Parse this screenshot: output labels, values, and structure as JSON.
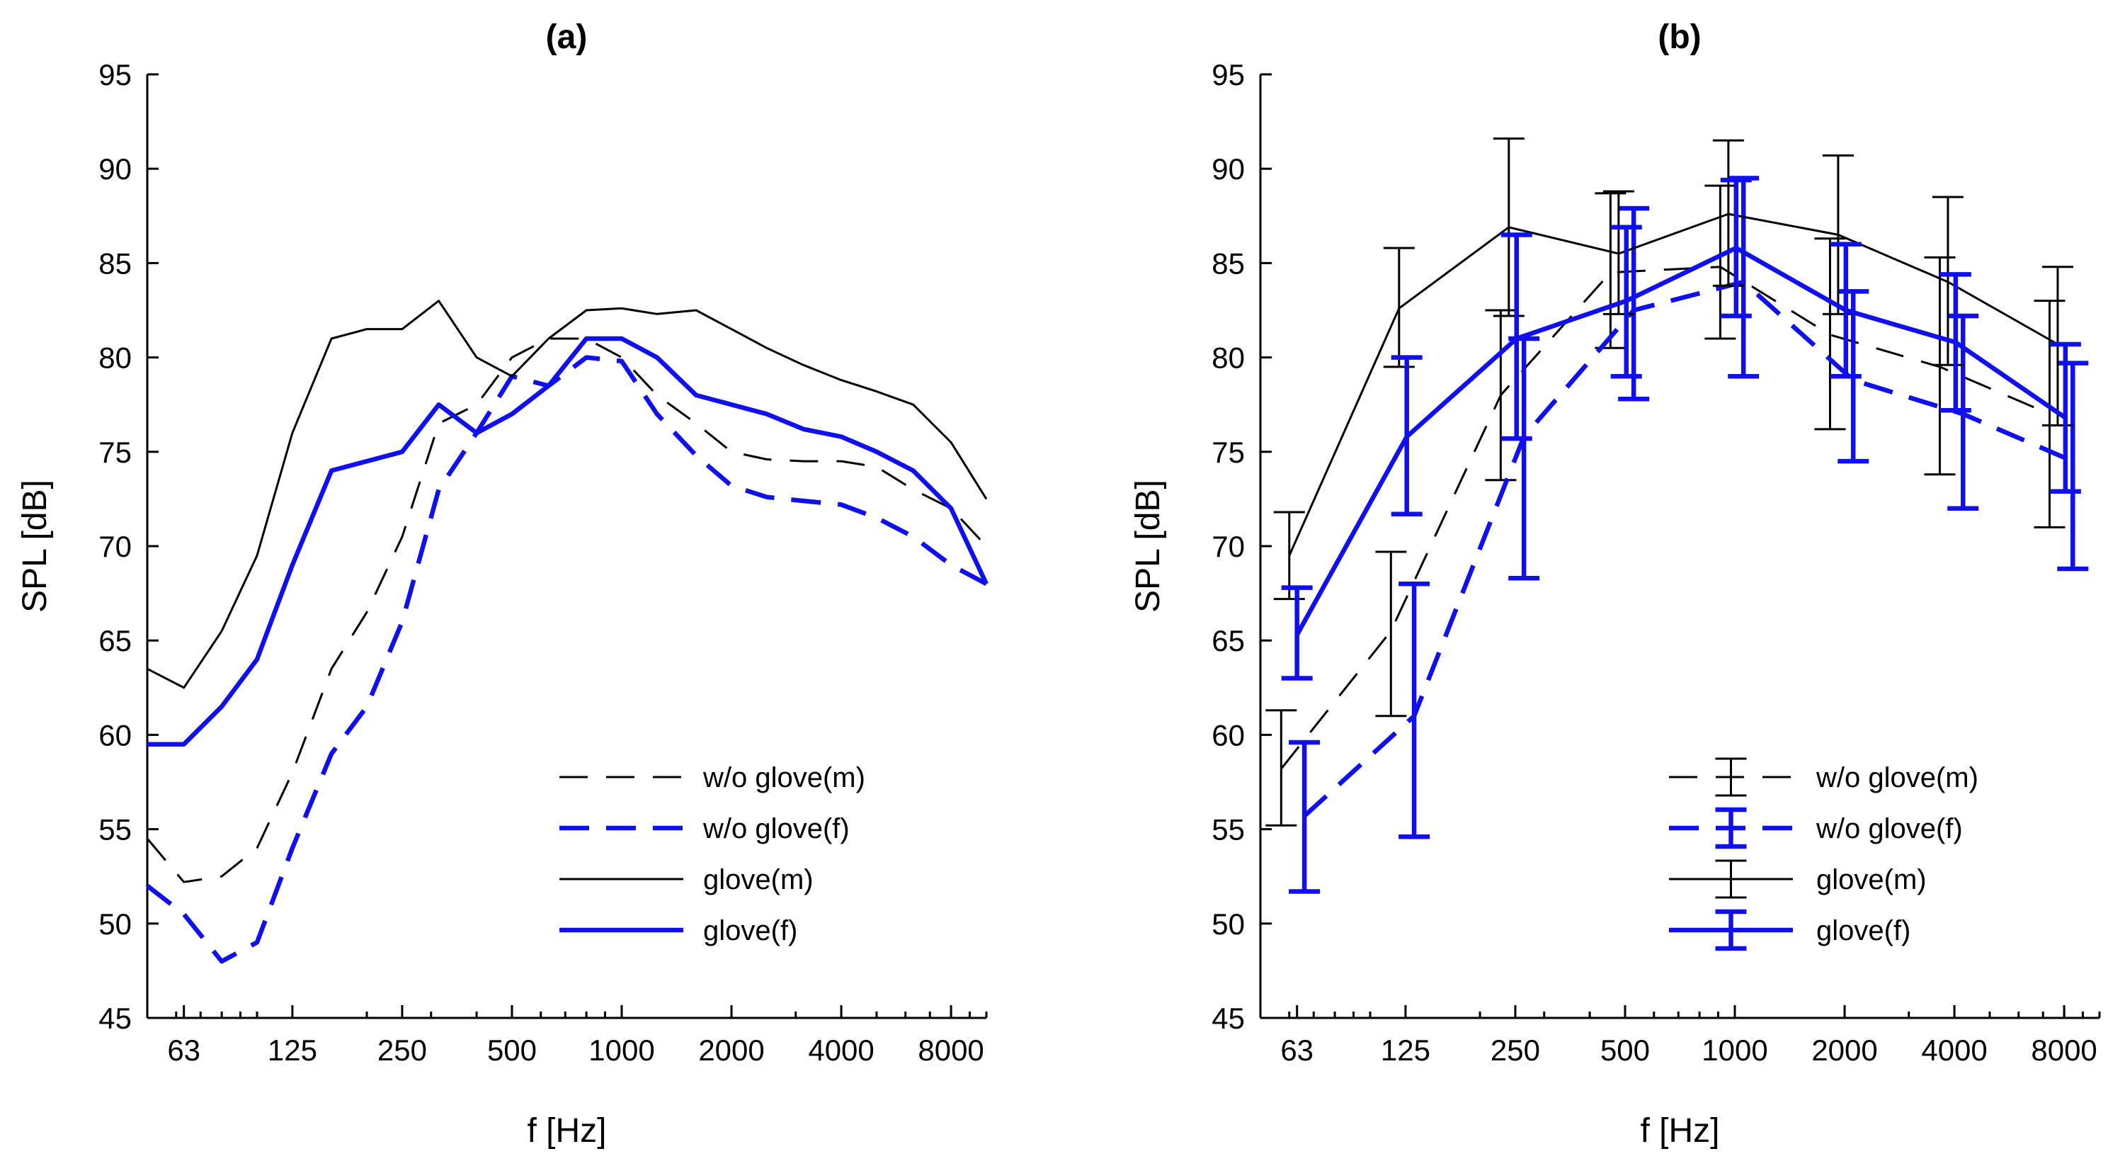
{
  "chart_data": [
    {
      "type": "line",
      "title": "(a)",
      "xlabel": "f [Hz]",
      "ylabel": "SPL [dB]",
      "xscale": "log",
      "xlim": [
        50,
        10000
      ],
      "ylim": [
        45,
        95
      ],
      "yticks": [
        45,
        50,
        55,
        60,
        65,
        70,
        75,
        80,
        85,
        90,
        95
      ],
      "xticks": [
        63,
        125,
        250,
        500,
        1000,
        2000,
        4000,
        8000
      ],
      "xtick_labels": [
        "63",
        "125",
        "250",
        "500",
        "1000",
        "2000",
        "4000",
        "8000"
      ],
      "legend_position": "bottom-right",
      "x": [
        50,
        63,
        80,
        100,
        125,
        160,
        200,
        250,
        315,
        400,
        500,
        630,
        800,
        1000,
        1250,
        1600,
        2000,
        2500,
        3150,
        4000,
        5000,
        6300,
        8000,
        10000
      ],
      "series": [
        {
          "name": "w/o glove(m)",
          "color": "#000000",
          "dash": "dashed",
          "weight": "thin",
          "values": [
            54.5,
            52.2,
            52.5,
            54,
            58,
            63.5,
            66.5,
            70.5,
            76.5,
            77.5,
            80,
            81,
            81,
            80,
            78,
            76.5,
            75,
            74.6,
            74.5,
            74.5,
            74.2,
            73,
            72,
            70
          ]
        },
        {
          "name": "w/o glove(f)",
          "color": "#1010ee",
          "dash": "dashed",
          "weight": "thick",
          "values": [
            52,
            50.5,
            48,
            49,
            54,
            59,
            61.5,
            66,
            73,
            76,
            79,
            78.5,
            80,
            79.8,
            77,
            74.8,
            73.2,
            72.6,
            72.4,
            72.2,
            71.5,
            70.5,
            69,
            68
          ]
        },
        {
          "name": "glove(m)",
          "color": "#000000",
          "dash": "solid",
          "weight": "thin",
          "values": [
            63.5,
            62.5,
            65.5,
            69.5,
            76,
            81,
            81.5,
            81.5,
            83,
            80,
            79,
            81,
            82.5,
            82.6,
            82.3,
            82.5,
            81.5,
            80.5,
            79.6,
            78.8,
            78.2,
            77.5,
            75.5,
            72.5
          ]
        },
        {
          "name": "glove(f)",
          "color": "#1010ee",
          "dash": "solid",
          "weight": "thick",
          "values": [
            59.5,
            59.5,
            61.5,
            64,
            69,
            74,
            74.5,
            75,
            77.5,
            76,
            77,
            78.5,
            81,
            81,
            80,
            78,
            77.5,
            77,
            76.2,
            75.8,
            75,
            74,
            72,
            68
          ]
        }
      ]
    },
    {
      "type": "line",
      "title": "(b)",
      "xlabel": "f [Hz]",
      "ylabel": "SPL [dB]",
      "xscale": "log",
      "xlim": [
        50,
        10000
      ],
      "ylim": [
        45,
        95
      ],
      "yticks": [
        45,
        50,
        55,
        60,
        65,
        70,
        75,
        80,
        85,
        90,
        95
      ],
      "xticks": [
        63,
        125,
        250,
        500,
        1000,
        2000,
        4000,
        8000
      ],
      "xtick_labels": [
        "63",
        "125",
        "250",
        "500",
        "1000",
        "2000",
        "4000",
        "8000"
      ],
      "legend_position": "bottom-right",
      "error_bars": true,
      "series": [
        {
          "name": "w/o glove(m)",
          "color": "#000000",
          "dash": "dashed",
          "weight": "thin",
          "x": [
            57,
            114,
            228,
            456,
            912,
            1824,
            3648,
            7296
          ],
          "values": [
            58.2,
            65.5,
            78,
            84.5,
            84.8,
            81.2,
            79.5,
            77
          ],
          "lower": [
            55.2,
            61,
            73.5,
            80.5,
            81,
            76.2,
            73.8,
            71
          ],
          "upper": [
            61.3,
            69.7,
            82.5,
            88.7,
            89.1,
            86.3,
            85.3,
            83
          ]
        },
        {
          "name": "w/o glove(f)",
          "color": "#1010ee",
          "dash": "dashed",
          "weight": "thick",
          "x": [
            66,
            132,
            264,
            528,
            1056,
            2112,
            4224,
            8448
          ],
          "values": [
            55.7,
            61,
            75.8,
            82.5,
            84,
            78.8,
            77,
            74.5
          ],
          "lower": [
            51.7,
            54.6,
            68.3,
            77.8,
            79,
            74.5,
            72,
            68.8
          ],
          "upper": [
            59.6,
            68,
            81,
            87.9,
            89.5,
            83.5,
            82.2,
            79.7
          ]
        },
        {
          "name": "glove(m)",
          "color": "#000000",
          "dash": "solid",
          "weight": "thin",
          "x": [
            60,
            120,
            240,
            480,
            960,
            1920,
            3840,
            7680
          ],
          "values": [
            69.5,
            82.6,
            86.9,
            85.5,
            87.6,
            86.5,
            84,
            80.7
          ],
          "lower": [
            67.2,
            79.5,
            82.2,
            82.3,
            83.8,
            82.3,
            79.6,
            76.4
          ],
          "upper": [
            71.8,
            85.8,
            91.6,
            88.8,
            91.5,
            90.7,
            88.5,
            84.8
          ]
        },
        {
          "name": "glove(f)",
          "color": "#1010ee",
          "dash": "solid",
          "weight": "thick",
          "x": [
            63,
            126,
            252,
            504,
            1008,
            2016,
            4032,
            8064
          ],
          "values": [
            65.3,
            75.8,
            81,
            83,
            85.8,
            82.5,
            80.8,
            76.8
          ],
          "lower": [
            63,
            71.7,
            75.7,
            79,
            82.2,
            79,
            77.2,
            72.9
          ],
          "upper": [
            67.8,
            80,
            86.5,
            86.9,
            89.4,
            86,
            84.4,
            80.7
          ]
        }
      ]
    }
  ]
}
